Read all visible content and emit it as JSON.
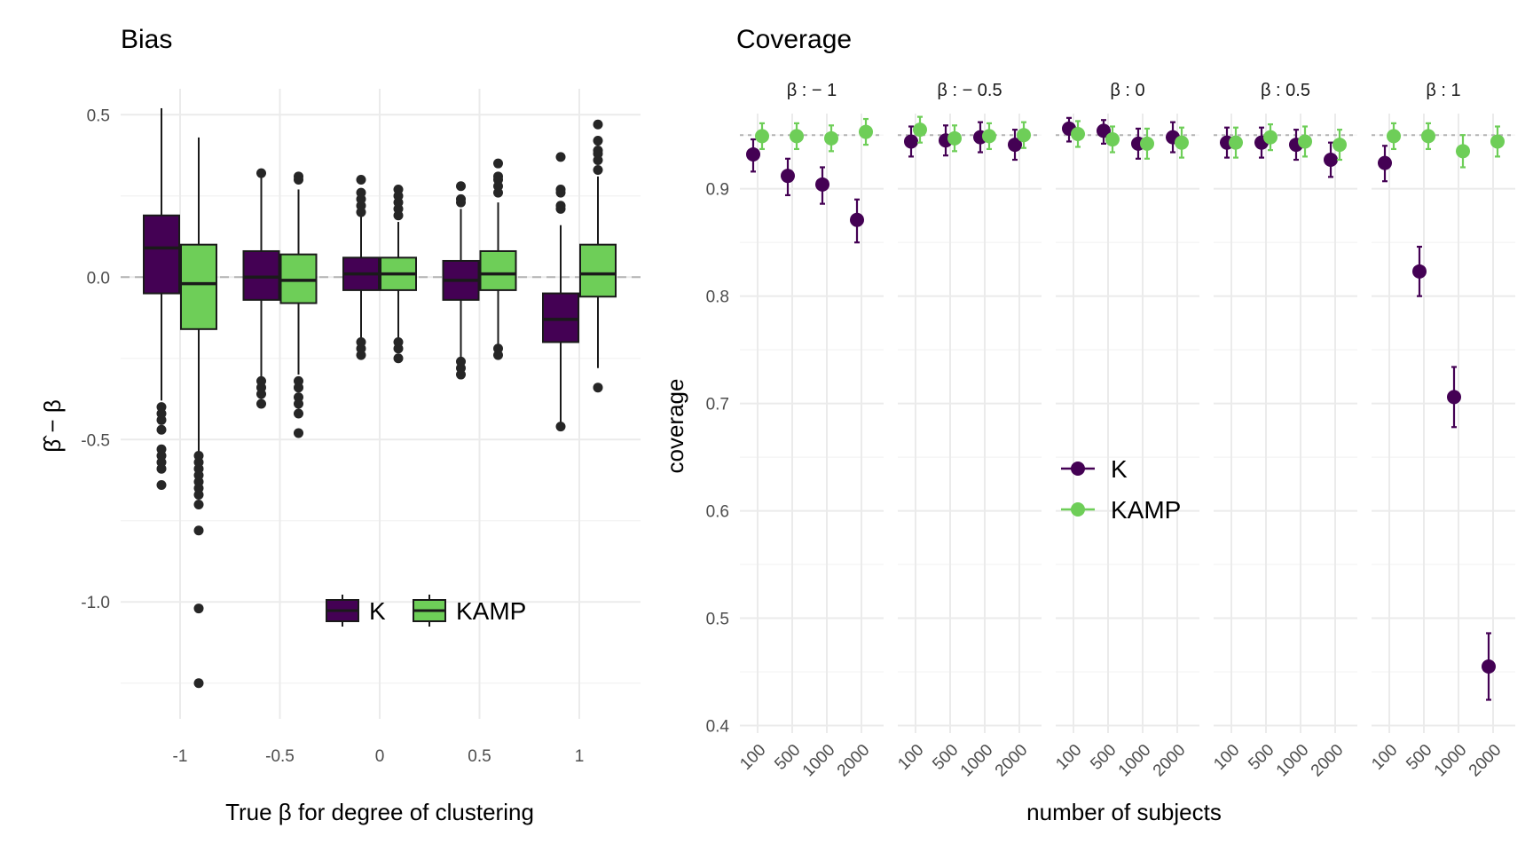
{
  "chart_data": [
    {
      "type": "boxplot",
      "title": "Bias",
      "xlabel": "True β for degree of clustering",
      "ylabel": "β̂ − β",
      "ylim": [
        -1.25,
        0.5
      ],
      "yticks": [
        0.5,
        0.0,
        -0.5,
        -1.0
      ],
      "ytick_labels": [
        "0.5",
        "0.0",
        "-0.5",
        "-1.0"
      ],
      "categories": [
        "-1",
        "-0.5",
        "0",
        "0.5",
        "1"
      ],
      "reference_line": 0,
      "legend": {
        "position": "bottom-right",
        "entries": [
          "K",
          "KAMP"
        ]
      },
      "colors": {
        "K": "#440154",
        "KAMP": "#6ece58"
      },
      "series": [
        {
          "name": "K",
          "boxes": [
            {
              "category": "-1",
              "whisker_low": -0.38,
              "q1": -0.05,
              "median": 0.09,
              "q3": 0.19,
              "whisker_high": 0.52,
              "outliers": [
                -0.4,
                -0.42,
                -0.44,
                -0.47,
                -0.53,
                -0.55,
                -0.57,
                -0.59,
                -0.64
              ]
            },
            {
              "category": "-0.5",
              "whisker_low": -0.31,
              "q1": -0.07,
              "median": 0.0,
              "q3": 0.08,
              "whisker_high": 0.31,
              "outliers": [
                -0.32,
                -0.34,
                -0.36,
                -0.39,
                0.32
              ]
            },
            {
              "category": "0",
              "whisker_low": -0.19,
              "q1": -0.04,
              "median": 0.01,
              "q3": 0.06,
              "whisker_high": 0.19,
              "outliers": [
                -0.2,
                -0.22,
                -0.24,
                0.2,
                0.22,
                0.24,
                0.26,
                0.3
              ]
            },
            {
              "category": "0.5",
              "whisker_low": -0.25,
              "q1": -0.07,
              "median": -0.01,
              "q3": 0.05,
              "whisker_high": 0.21,
              "outliers": [
                -0.26,
                -0.28,
                -0.3,
                0.23,
                0.24,
                0.28
              ]
            },
            {
              "category": "1",
              "whisker_low": -0.45,
              "q1": -0.2,
              "median": -0.13,
              "q3": -0.05,
              "whisker_high": 0.16,
              "outliers": [
                -0.46,
                0.21,
                0.22,
                0.26,
                0.27,
                0.37
              ]
            }
          ]
        },
        {
          "name": "KAMP",
          "boxes": [
            {
              "category": "-1",
              "whisker_low": -0.54,
              "q1": -0.16,
              "median": -0.02,
              "q3": 0.1,
              "whisker_high": 0.43,
              "outliers": [
                -0.55,
                -0.57,
                -0.59,
                -0.61,
                -0.63,
                -0.65,
                -0.67,
                -0.7,
                -0.78,
                -1.02,
                -1.25
              ]
            },
            {
              "category": "-0.5",
              "whisker_low": -0.3,
              "q1": -0.08,
              "median": -0.01,
              "q3": 0.07,
              "whisker_high": 0.27,
              "outliers": [
                -0.32,
                -0.34,
                -0.37,
                -0.39,
                -0.42,
                -0.48,
                0.3,
                0.31
              ]
            },
            {
              "category": "0",
              "whisker_low": -0.19,
              "q1": -0.04,
              "median": 0.01,
              "q3": 0.06,
              "whisker_high": 0.17,
              "outliers": [
                -0.2,
                -0.22,
                -0.25,
                0.19,
                0.21,
                0.23,
                0.25,
                0.27
              ]
            },
            {
              "category": "0.5",
              "whisker_low": -0.21,
              "q1": -0.04,
              "median": 0.01,
              "q3": 0.08,
              "whisker_high": 0.23,
              "outliers": [
                -0.22,
                -0.24,
                0.26,
                0.28,
                0.3,
                0.31,
                0.35
              ]
            },
            {
              "category": "1",
              "whisker_low": -0.28,
              "q1": -0.06,
              "median": 0.01,
              "q3": 0.1,
              "whisker_high": 0.31,
              "outliers": [
                -0.34,
                0.33,
                0.36,
                0.38,
                0.39,
                0.42,
                0.47
              ]
            }
          ]
        }
      ]
    },
    {
      "type": "scatter",
      "title": "Coverage",
      "xlabel": "number of subjects",
      "ylabel": "coverage",
      "ylim": [
        0.4,
        0.97
      ],
      "yticks": [
        0.4,
        0.5,
        0.6,
        0.7,
        0.8,
        0.9
      ],
      "ytick_labels": [
        "0.4",
        "0.5",
        "0.6",
        "0.7",
        "0.8",
        "0.9"
      ],
      "x": [
        "100",
        "500",
        "1000",
        "2000"
      ],
      "reference_line": 0.95,
      "legend": {
        "position": "center-left",
        "entries": [
          "K",
          "KAMP"
        ]
      },
      "colors": {
        "K": "#440154",
        "KAMP": "#6ece58"
      },
      "facets": [
        {
          "label": "β : − 1",
          "series": [
            {
              "name": "K",
              "values": [
                0.932,
                0.912,
                0.904,
                0.871
              ],
              "lower": [
                0.916,
                0.894,
                0.886,
                0.85
              ],
              "upper": [
                0.946,
                0.928,
                0.92,
                0.89
              ]
            },
            {
              "name": "KAMP",
              "values": [
                0.949,
                0.949,
                0.947,
                0.953
              ],
              "lower": [
                0.937,
                0.937,
                0.935,
                0.941
              ],
              "upper": [
                0.961,
                0.961,
                0.959,
                0.965
              ]
            }
          ]
        },
        {
          "label": "β : − 0.5",
          "series": [
            {
              "name": "K",
              "values": [
                0.944,
                0.945,
                0.948,
                0.941
              ],
              "lower": [
                0.93,
                0.931,
                0.934,
                0.927
              ],
              "upper": [
                0.958,
                0.959,
                0.962,
                0.955
              ]
            },
            {
              "name": "KAMP",
              "values": [
                0.955,
                0.947,
                0.949,
                0.95
              ],
              "lower": [
                0.943,
                0.935,
                0.937,
                0.938
              ],
              "upper": [
                0.967,
                0.959,
                0.961,
                0.962
              ]
            }
          ]
        },
        {
          "label": "β : 0",
          "series": [
            {
              "name": "K",
              "values": [
                0.956,
                0.954,
                0.942,
                0.948
              ],
              "lower": [
                0.944,
                0.942,
                0.928,
                0.934
              ],
              "upper": [
                0.966,
                0.964,
                0.956,
                0.962
              ]
            },
            {
              "name": "KAMP",
              "values": [
                0.951,
                0.946,
                0.942,
                0.943
              ],
              "lower": [
                0.939,
                0.934,
                0.928,
                0.929
              ],
              "upper": [
                0.963,
                0.958,
                0.956,
                0.957
              ]
            }
          ]
        },
        {
          "label": "β : 0.5",
          "series": [
            {
              "name": "K",
              "values": [
                0.943,
                0.943,
                0.941,
                0.927
              ],
              "lower": [
                0.929,
                0.929,
                0.927,
                0.911
              ],
              "upper": [
                0.957,
                0.957,
                0.955,
                0.943
              ]
            },
            {
              "name": "KAMP",
              "values": [
                0.943,
                0.948,
                0.944,
                0.941
              ],
              "lower": [
                0.929,
                0.936,
                0.93,
                0.927
              ],
              "upper": [
                0.957,
                0.96,
                0.958,
                0.955
              ]
            }
          ]
        },
        {
          "label": "β : 1",
          "series": [
            {
              "name": "K",
              "values": [
                0.924,
                0.823,
                0.706,
                0.455
              ],
              "lower": [
                0.907,
                0.8,
                0.678,
                0.424
              ],
              "upper": [
                0.94,
                0.846,
                0.734,
                0.486
              ]
            },
            {
              "name": "KAMP",
              "values": [
                0.949,
                0.949,
                0.935,
                0.944
              ],
              "lower": [
                0.937,
                0.937,
                0.92,
                0.93
              ],
              "upper": [
                0.961,
                0.961,
                0.95,
                0.958
              ]
            }
          ]
        }
      ]
    }
  ]
}
